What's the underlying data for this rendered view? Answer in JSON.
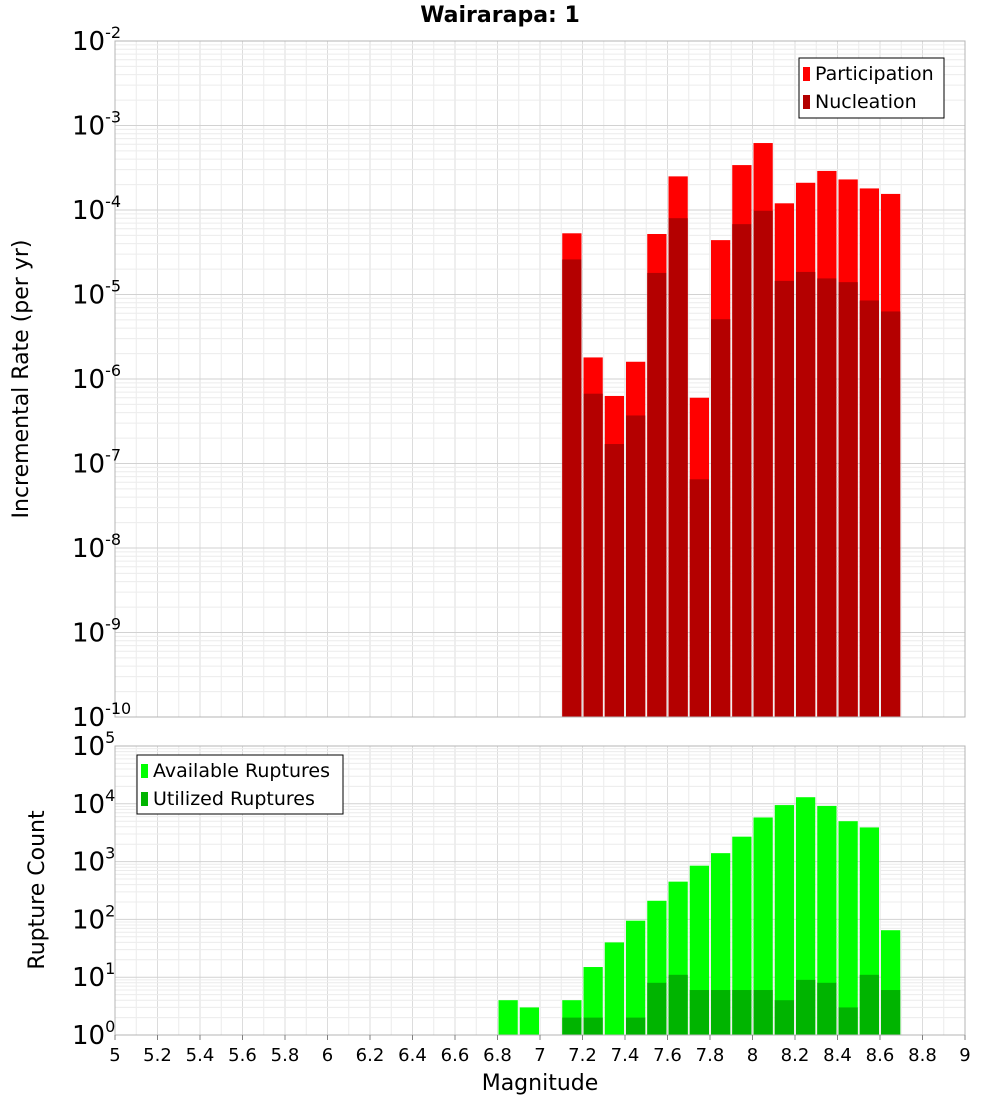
{
  "chart_data": [
    {
      "type": "bar",
      "title": "Wairarapa: 1",
      "ylabel": "Incremental Rate (per yr)",
      "yscale": "log",
      "ylim_exponents": [
        -10,
        -2
      ],
      "xlim": [
        5,
        9
      ],
      "bin_width": 0.1,
      "grid": true,
      "legend_position": "top-right",
      "series": [
        {
          "name": "Participation",
          "color": "#ff0000",
          "x": [
            7.15,
            7.25,
            7.35,
            7.45,
            7.55,
            7.65,
            7.75,
            7.85,
            7.95,
            8.05,
            8.15,
            8.25,
            8.35,
            8.45,
            8.55,
            8.65
          ],
          "values": [
            5.3e-05,
            1.8e-06,
            6.3e-07,
            1.6e-06,
            5.2e-05,
            0.00025,
            6e-07,
            4.4e-05,
            0.00034,
            0.00062,
            0.00012,
            0.00021,
            0.00029,
            0.00023,
            0.00018,
            0.000155
          ]
        },
        {
          "name": "Nucleation",
          "color": "#b40000",
          "x": [
            7.15,
            7.25,
            7.35,
            7.45,
            7.55,
            7.65,
            7.75,
            7.85,
            7.95,
            8.05,
            8.15,
            8.25,
            8.35,
            8.45,
            8.55,
            8.65
          ],
          "values": [
            2.6e-05,
            6.7e-07,
            1.7e-07,
            3.7e-07,
            1.8e-05,
            8e-05,
            6.5e-08,
            5.1e-06,
            6.8e-05,
            9.8e-05,
            1.45e-05,
            1.85e-05,
            1.55e-05,
            1.4e-05,
            8.5e-06,
            6.3e-06
          ]
        }
      ]
    },
    {
      "type": "bar",
      "xlabel": "Magnitude",
      "ylabel": "Rupture Count",
      "yscale": "log",
      "ylim_exponents": [
        0,
        5
      ],
      "xlim": [
        5,
        9
      ],
      "bin_width": 0.1,
      "grid": true,
      "legend_position": "top-left",
      "x_ticks": [
        "5",
        "5.2",
        "5.4",
        "5.6",
        "5.8",
        "6",
        "6.2",
        "6.4",
        "6.6",
        "6.8",
        "7",
        "7.2",
        "7.4",
        "7.6",
        "7.8",
        "8",
        "8.2",
        "8.4",
        "8.6",
        "8.8",
        "9"
      ],
      "series": [
        {
          "name": "Available Ruptures",
          "color": "#00ff00",
          "x": [
            6.85,
            6.95,
            7.15,
            7.25,
            7.35,
            7.45,
            7.55,
            7.65,
            7.75,
            7.85,
            7.95,
            8.05,
            8.15,
            8.25,
            8.35,
            8.45,
            8.55,
            8.65
          ],
          "values": [
            4,
            3,
            4,
            15,
            40,
            95,
            210,
            450,
            850,
            1400,
            2700,
            5800,
            9500,
            13000,
            9200,
            5000,
            3900,
            65
          ]
        },
        {
          "name": "Utilized Ruptures",
          "color": "#00b400",
          "x": [
            7.15,
            7.25,
            7.35,
            7.45,
            7.55,
            7.65,
            7.75,
            7.85,
            7.95,
            8.05,
            8.15,
            8.25,
            8.35,
            8.45,
            8.55,
            8.65
          ],
          "values": [
            2,
            2,
            1,
            2,
            8,
            11,
            6,
            6,
            6,
            6,
            4,
            9,
            8,
            3,
            11,
            6
          ]
        }
      ]
    }
  ]
}
